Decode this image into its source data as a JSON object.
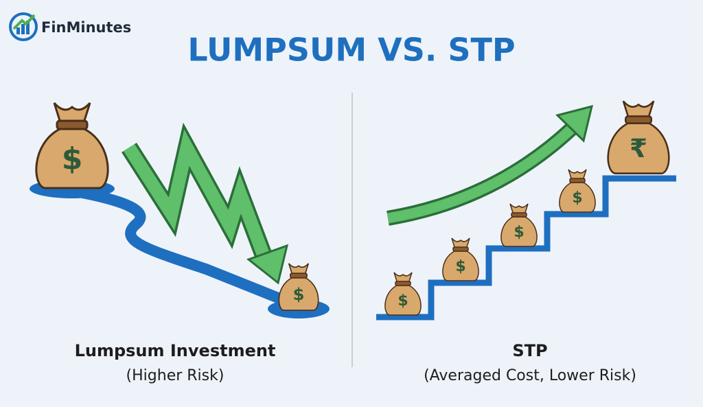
{
  "logo": {
    "name": "FinMinutes"
  },
  "title": "LUMPSUM VS. STP",
  "left": {
    "label": "Lumpsum Investment",
    "note": "(Higher Risk)",
    "symbol": "$"
  },
  "right": {
    "label": "STP",
    "note": "(Averaged Cost, Lower Risk)",
    "symbol": "₹"
  }
}
